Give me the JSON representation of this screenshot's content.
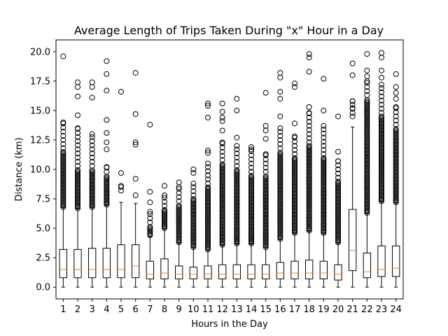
{
  "chart_data": {
    "type": "box",
    "title": "Average Length of Trips Taken During \"x\" Hour in a Day",
    "xlabel": "Hours in the Day",
    "ylabel": "Distance (km)",
    "ylim": [
      -1.0,
      21.0
    ],
    "yticks": [
      "0.0",
      "2.5",
      "5.0",
      "7.5",
      "10.0",
      "12.5",
      "15.0",
      "17.5",
      "20.0"
    ],
    "ytick_values": [
      0,
      2.5,
      5,
      7.5,
      10,
      12.5,
      15,
      17.5,
      20
    ],
    "categories": [
      "1",
      "2",
      "3",
      "4",
      "5",
      "6",
      "7",
      "8",
      "9",
      "10",
      "11",
      "12",
      "13",
      "14",
      "15",
      "16",
      "17",
      "18",
      "19",
      "20",
      "21",
      "22",
      "23",
      "24"
    ],
    "grid": false,
    "colors": {
      "box": "#000000",
      "median": "#ff7f0e",
      "flier": "#000000"
    },
    "boxes": [
      {
        "hour": "1",
        "whisker_low": 0.0,
        "q1": 0.8,
        "median": 1.5,
        "q3": 3.2,
        "whisker_high": 6.8,
        "fliers_from": 6.8,
        "fliers_to": 14.0,
        "fliers_dense_to": 11.5,
        "extra_fliers": [
          19.6
        ]
      },
      {
        "hour": "2",
        "whisker_low": 0.0,
        "q1": 0.8,
        "median": 1.5,
        "q3": 3.2,
        "whisker_high": 6.7,
        "fliers_from": 6.7,
        "fliers_to": 13.5,
        "fliers_dense_to": 10.0,
        "extra_fliers": [
          14.6,
          16.2,
          17.0,
          17.4
        ]
      },
      {
        "hour": "3",
        "whisker_low": 0.0,
        "q1": 0.8,
        "median": 1.5,
        "q3": 3.3,
        "whisker_high": 6.8,
        "fliers_from": 6.8,
        "fliers_to": 13.0,
        "fliers_dense_to": 10.0,
        "extra_fliers": [
          16.1,
          17.0,
          17.4
        ]
      },
      {
        "hour": "4",
        "whisker_low": 0.0,
        "q1": 0.8,
        "median": 1.5,
        "q3": 3.3,
        "whisker_high": 7.0,
        "fliers_from": 7.0,
        "fliers_to": 10.2,
        "fliers_dense_to": 9.5,
        "extra_fliers": [
          11.7,
          12.3,
          13.1,
          14.2,
          16.7,
          18.1,
          19.2
        ]
      },
      {
        "hour": "5",
        "whisker_low": 0.0,
        "q1": 0.8,
        "median": 1.5,
        "q3": 3.6,
        "whisker_high": 7.2,
        "fliers_from": 8.2,
        "fliers_to": 8.6,
        "fliers_dense_to": 8.2,
        "extra_fliers": [
          9.7,
          16.6
        ]
      },
      {
        "hour": "6",
        "whisker_low": 0.0,
        "q1": 0.8,
        "median": 1.8,
        "q3": 3.6,
        "whisker_high": 7.1,
        "fliers_from": 7.8,
        "fliers_to": 7.8,
        "fliers_dense_to": 7.8,
        "extra_fliers": [
          9.2,
          12.1,
          12.3,
          14.7,
          18.2
        ]
      },
      {
        "hour": "7",
        "whisker_low": 0.0,
        "q1": 0.7,
        "median": 1.1,
        "q3": 2.2,
        "whisker_high": 4.3,
        "fliers_from": 4.4,
        "fliers_to": 6.4,
        "fliers_dense_to": 5.2,
        "extra_fliers": [
          7.2,
          8.1,
          13.8
        ]
      },
      {
        "hour": "8",
        "whisker_low": 0.0,
        "q1": 0.7,
        "median": 1.2,
        "q3": 2.4,
        "whisker_high": 5.0,
        "fliers_from": 5.0,
        "fliers_to": 7.8,
        "fliers_dense_to": 6.6,
        "extra_fliers": [
          8.6
        ]
      },
      {
        "hour": "9",
        "whisker_low": 0.0,
        "q1": 0.7,
        "median": 1.1,
        "q3": 1.8,
        "whisker_high": 3.8,
        "fliers_from": 3.8,
        "fliers_to": 8.5,
        "fliers_dense_to": 7.0,
        "extra_fliers": [
          8.9
        ]
      },
      {
        "hour": "10",
        "whisker_low": 0.0,
        "q1": 0.7,
        "median": 1.1,
        "q3": 1.7,
        "whisker_high": 3.4,
        "fliers_from": 3.4,
        "fliers_to": 8.8,
        "fliers_dense_to": 7.5,
        "extra_fliers": [
          9.7,
          10.0
        ]
      },
      {
        "hour": "11",
        "whisker_low": 0.0,
        "q1": 0.7,
        "median": 1.1,
        "q3": 1.8,
        "whisker_high": 3.2,
        "fliers_from": 3.2,
        "fliers_to": 10.5,
        "fliers_dense_to": 8.5,
        "extra_fliers": [
          11.4,
          11.6,
          14.4,
          15.4,
          15.6
        ]
      },
      {
        "hour": "12",
        "whisker_low": 0.0,
        "q1": 0.7,
        "median": 1.1,
        "q3": 1.9,
        "whisker_high": 3.6,
        "fliers_from": 3.6,
        "fliers_to": 12.3,
        "fliers_dense_to": 10.5,
        "extra_fliers": [
          13.3,
          14.1,
          14.4,
          14.9,
          15.6
        ]
      },
      {
        "hour": "13",
        "whisker_low": 0.0,
        "q1": 0.7,
        "median": 1.1,
        "q3": 1.9,
        "whisker_high": 3.7,
        "fliers_from": 3.7,
        "fliers_to": 12.0,
        "fliers_dense_to": 10.0,
        "extra_fliers": [
          12.7,
          15.0,
          16.0
        ]
      },
      {
        "hour": "14",
        "whisker_low": 0.0,
        "q1": 0.7,
        "median": 1.1,
        "q3": 1.9,
        "whisker_high": 3.7,
        "fliers_from": 3.7,
        "fliers_to": 11.7,
        "fliers_dense_to": 9.5,
        "extra_fliers": [
          11.9
        ]
      },
      {
        "hour": "15",
        "whisker_low": 0.0,
        "q1": 0.7,
        "median": 1.1,
        "q3": 1.9,
        "whisker_high": 3.4,
        "fliers_from": 3.4,
        "fliers_to": 11.3,
        "fliers_dense_to": 9.5,
        "extra_fliers": [
          12.6,
          13.3,
          13.7,
          16.5
        ]
      },
      {
        "hour": "16",
        "whisker_low": 0.0,
        "q1": 0.7,
        "median": 1.2,
        "q3": 2.1,
        "whisker_high": 4.1,
        "fliers_from": 4.1,
        "fliers_to": 13.5,
        "fliers_dense_to": 11.5,
        "extra_fliers": [
          14.5,
          16.0,
          16.6,
          17.8,
          18.2
        ]
      },
      {
        "hour": "17",
        "whisker_low": 0.0,
        "q1": 0.7,
        "median": 1.2,
        "q3": 2.2,
        "whisker_high": 4.6,
        "fliers_from": 4.6,
        "fliers_to": 12.8,
        "fliers_dense_to": 11.0,
        "extra_fliers": [
          13.9,
          17.0,
          17.3
        ]
      },
      {
        "hour": "18",
        "whisker_low": 0.0,
        "q1": 0.7,
        "median": 1.2,
        "q3": 2.3,
        "whisker_high": 4.8,
        "fliers_from": 4.8,
        "fliers_to": 14.8,
        "fliers_dense_to": 12.0,
        "extra_fliers": [
          15.3,
          18.3,
          19.5,
          19.8
        ]
      },
      {
        "hour": "19",
        "whisker_low": 0.0,
        "q1": 0.7,
        "median": 1.2,
        "q3": 2.2,
        "whisker_high": 4.6,
        "fliers_from": 4.6,
        "fliers_to": 13.7,
        "fliers_dense_to": 11.0,
        "extra_fliers": [
          15.0,
          17.7
        ]
      },
      {
        "hour": "20",
        "whisker_low": 0.0,
        "q1": 0.6,
        "median": 1.1,
        "q3": 1.9,
        "whisker_high": 3.8,
        "fliers_from": 3.8,
        "fliers_to": 10.7,
        "fliers_dense_to": 9.0,
        "extra_fliers": [
          11.5,
          14.5
        ]
      },
      {
        "hour": "21",
        "whisker_low": 0.0,
        "q1": 1.4,
        "median": 3.1,
        "q3": 6.6,
        "whisker_high": 13.6,
        "fliers_from": 14.5,
        "fliers_to": 15.8,
        "fliers_dense_to": 14.5,
        "extra_fliers": [
          15.2,
          15.8,
          18.0,
          19.0
        ]
      },
      {
        "hour": "22",
        "whisker_low": 0.0,
        "q1": 0.8,
        "median": 1.3,
        "q3": 2.9,
        "whisker_high": 6.3,
        "fliers_from": 6.3,
        "fliers_to": 17.5,
        "fliers_dense_to": 16.0,
        "extra_fliers": [
          17.9,
          18.4,
          19.8
        ]
      },
      {
        "hour": "23",
        "whisker_low": 0.0,
        "q1": 0.9,
        "median": 1.5,
        "q3": 3.5,
        "whisker_high": 7.3,
        "fliers_from": 7.3,
        "fliers_to": 17.2,
        "fliers_dense_to": 14.5,
        "extra_fliers": [
          17.8,
          18.4,
          19.5,
          19.9
        ]
      },
      {
        "hour": "24",
        "whisker_low": 0.0,
        "q1": 0.9,
        "median": 1.6,
        "q3": 3.5,
        "whisker_high": 7.2,
        "fliers_from": 7.2,
        "fliers_to": 15.3,
        "fliers_dense_to": 13.5,
        "extra_fliers": [
          16.0,
          16.5,
          17.0,
          18.1
        ]
      }
    ]
  }
}
